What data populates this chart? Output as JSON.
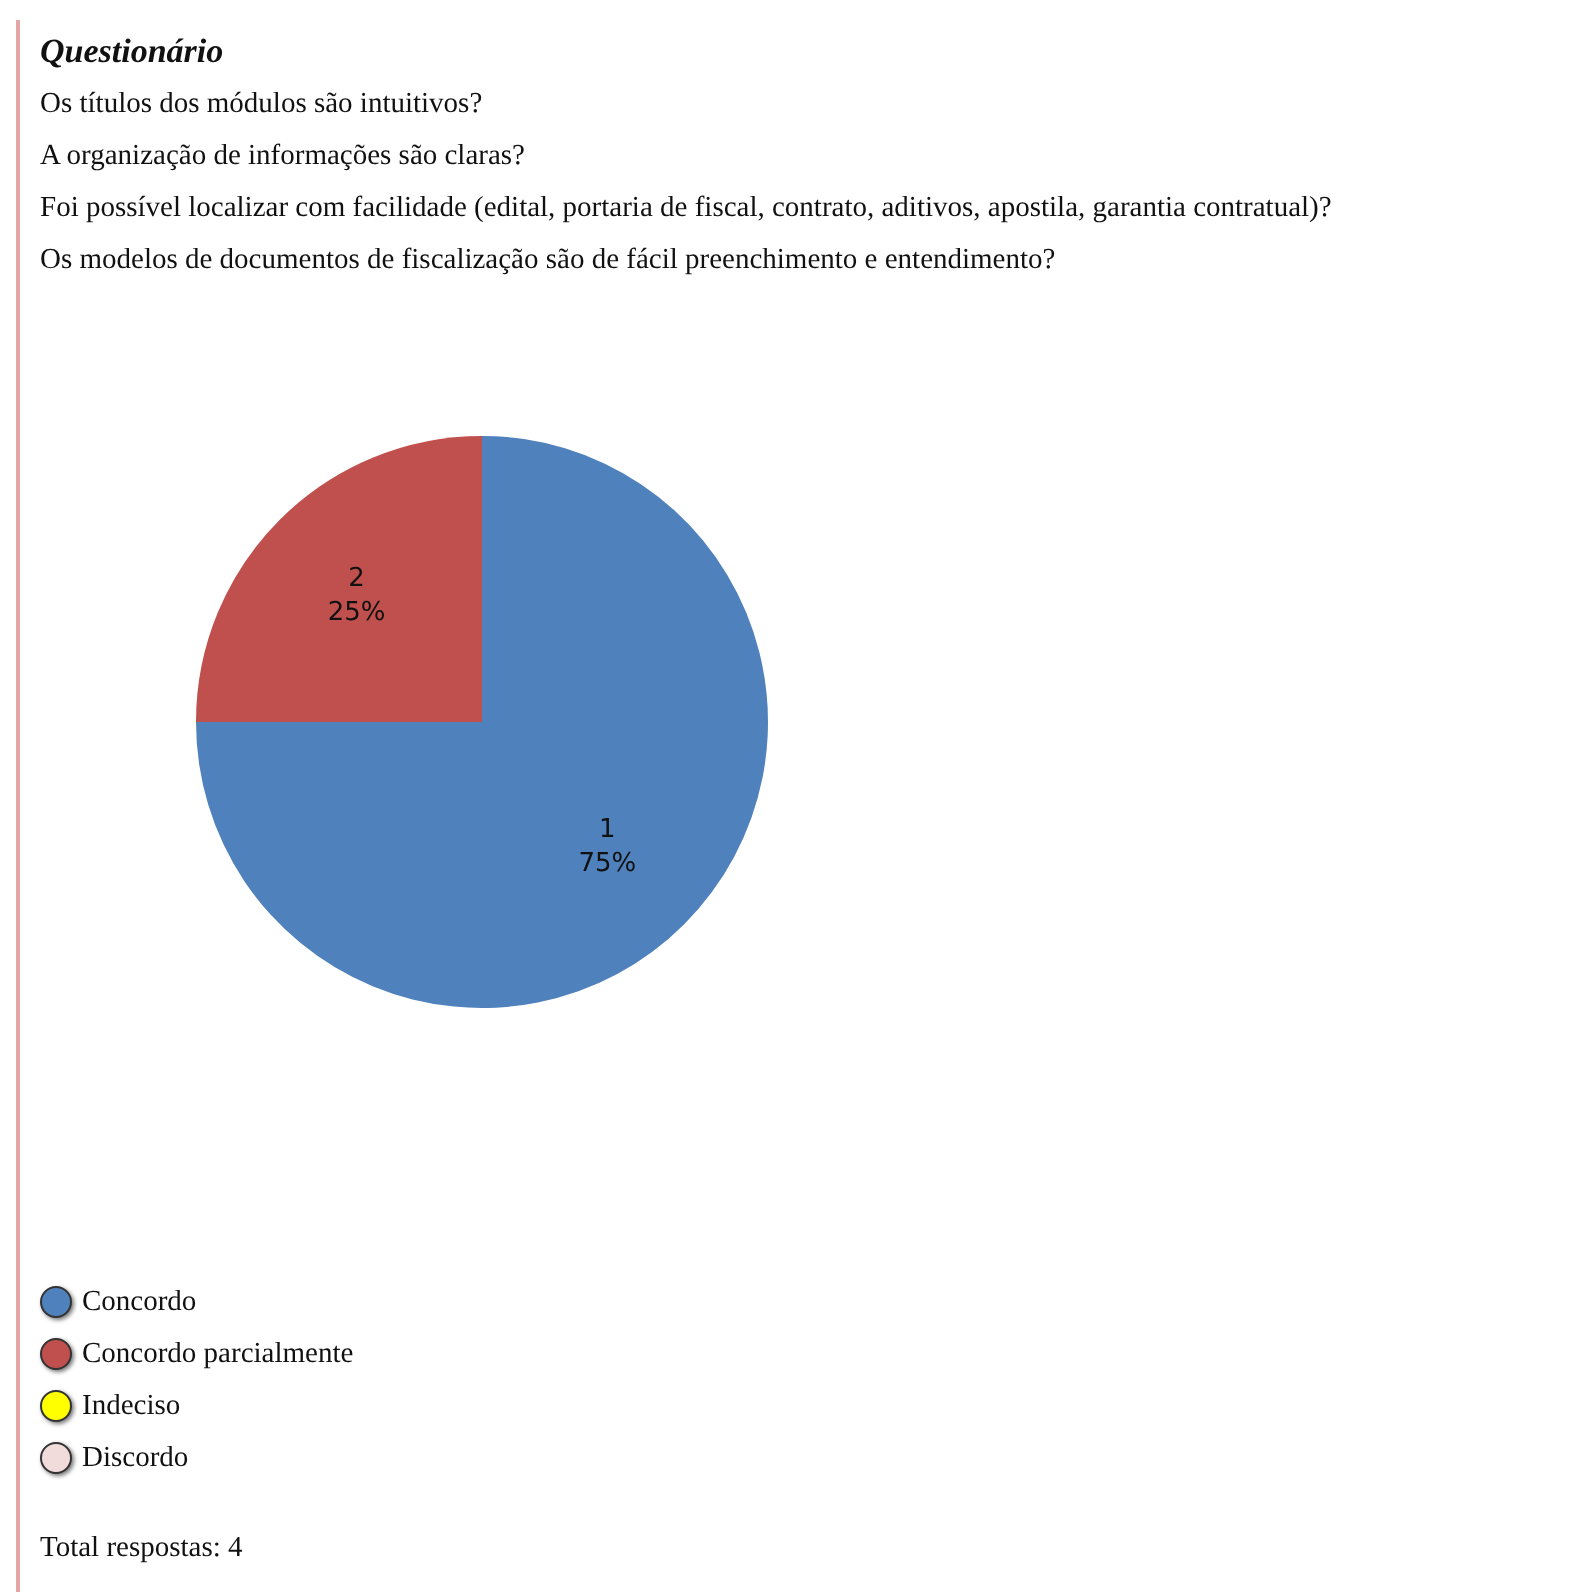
{
  "chart_data": {
    "type": "pie",
    "title": "Questionário",
    "annotations": [
      "Os títulos dos módulos são intuitivos?",
      "A organização de informações são claras?",
      "Foi possível localizar com facilidade (edital, portaria de fiscal, contrato, aditivos, apostila, garantia contratual)?",
      "Os modelos de documentos de fiscalização são de fácil preenchimento e entendimento?",
      "Total respostas: 4"
    ],
    "categories": [
      "Concordo",
      "Concordo parcialmente",
      "Indeciso",
      "Discordo"
    ],
    "values": [
      75,
      25,
      0,
      0
    ],
    "colors": [
      "#4f81bd",
      "#c0504d",
      "#ffff00",
      "#f2dcdb"
    ],
    "value_labels": [
      "1\n75%",
      "2\n25%",
      null,
      null
    ],
    "legend": "bottom left"
  }
}
